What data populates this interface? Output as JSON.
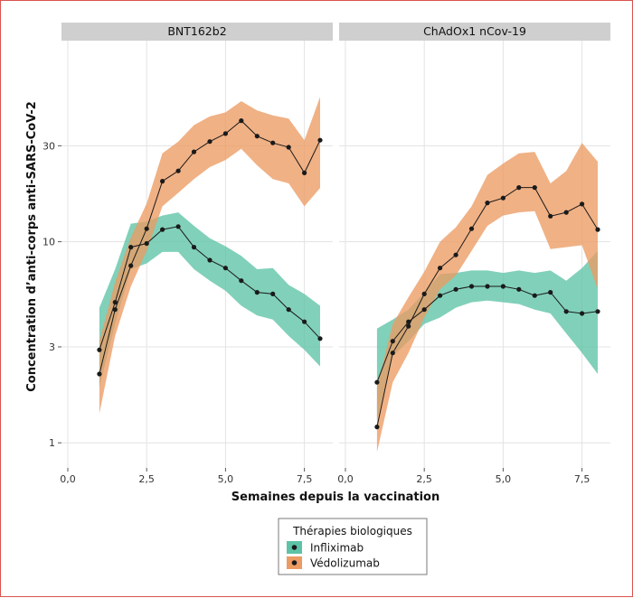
{
  "chart_data": {
    "type": "line",
    "y_scale": "log",
    "ylim": [
      0.75,
      100
    ],
    "xlim": [
      -0.2,
      8.4
    ],
    "x_ticks": [
      0,
      2.5,
      5,
      7.5
    ],
    "x_tick_labels": [
      "0,0",
      "2,5",
      "5,0",
      "7,5"
    ],
    "y_ticks": [
      1,
      3,
      10,
      30
    ],
    "y_tick_labels": [
      "1",
      "3",
      "10",
      "30"
    ],
    "xlabel": "Semaines depuis la vaccination",
    "ylabel": "Concentration d’anti-corps anti-SARS-CoV-2",
    "grid": true,
    "legend": {
      "title": "Thérapies biologiques",
      "position": "bottom",
      "entries": [
        {
          "name": "Infliximab",
          "color": "#5ec3a6"
        },
        {
          "name": "Védolizumab",
          "color": "#ec9b63"
        }
      ]
    },
    "panels": [
      {
        "title": "BNT162b2",
        "series": [
          {
            "name": "Infliximab",
            "x": [
              1,
              1.5,
              2,
              2.5,
              3,
              3.5,
              4,
              4.5,
              5,
              5.5,
              6,
              6.5,
              7,
              7.5,
              8
            ],
            "y": [
              2.9,
              5.0,
              9.4,
              9.8,
              11.5,
              11.9,
              9.4,
              8.1,
              7.4,
              6.4,
              5.6,
              5.5,
              4.6,
              4.0,
              3.3
            ],
            "lower": [
              1.9,
              3.9,
              7.3,
              7.8,
              8.9,
              8.9,
              7.3,
              6.4,
              5.7,
              4.8,
              4.3,
              4.1,
              3.4,
              2.9,
              2.4
            ],
            "upper": [
              4.7,
              7.3,
              12.3,
              12.6,
              13.5,
              14.0,
              12.0,
              10.4,
              9.5,
              8.5,
              7.3,
              7.4,
              6.1,
              5.5,
              4.8
            ]
          },
          {
            "name": "Védolizumab",
            "x": [
              1,
              1.5,
              2,
              2.5,
              3,
              3.5,
              4,
              4.5,
              5,
              5.5,
              6,
              6.5,
              7,
              7.5,
              8
            ],
            "y": [
              2.2,
              4.6,
              7.6,
              11.6,
              20.0,
              22.5,
              28.0,
              31.5,
              34.5,
              40.0,
              33.5,
              31.0,
              29.5,
              22.0,
              32.0
            ],
            "lower": [
              1.4,
              3.4,
              6.0,
              9.0,
              15.0,
              17.5,
              20.5,
              23.5,
              25.5,
              29.0,
              24.0,
              20.5,
              19.5,
              15.0,
              18.5
            ],
            "upper": [
              3.2,
              6.3,
              10.5,
              15.5,
              27.5,
              31.5,
              38.0,
              42.0,
              44.0,
              50.0,
              45.0,
              42.5,
              41.0,
              32.0,
              52.5
            ]
          }
        ]
      },
      {
        "title": "ChAdOx1 nCov-19",
        "series": [
          {
            "name": "Infliximab",
            "x": [
              1,
              1.5,
              2,
              2.5,
              3,
              3.5,
              4,
              4.5,
              5,
              5.5,
              6,
              6.5,
              7,
              7.5,
              8
            ],
            "y": [
              2.0,
              3.2,
              4.0,
              4.6,
              5.4,
              5.8,
              6.0,
              6.0,
              6.0,
              5.8,
              5.4,
              5.6,
              4.5,
              4.4,
              4.5
            ],
            "lower": [
              1.3,
              2.7,
              3.2,
              3.9,
              4.2,
              4.7,
              5.0,
              5.1,
              5.0,
              4.9,
              4.6,
              4.4,
              3.5,
              2.8,
              2.2
            ],
            "upper": [
              3.7,
              4.1,
              4.6,
              5.6,
              6.9,
              7.0,
              7.2,
              7.2,
              7.0,
              7.2,
              7.0,
              7.2,
              6.4,
              7.4,
              9.0
            ]
          },
          {
            "name": "Védolizumab",
            "x": [
              1,
              1.5,
              2,
              2.5,
              3,
              3.5,
              4,
              4.5,
              5,
              5.5,
              6,
              6.5,
              7,
              7.5,
              8
            ],
            "y": [
              1.2,
              2.8,
              3.8,
              5.5,
              7.4,
              8.6,
              11.6,
              15.6,
              16.5,
              18.6,
              18.6,
              13.4,
              14.0,
              15.4,
              11.5
            ],
            "lower": [
              0.9,
              2.0,
              2.8,
              4.2,
              5.8,
              6.8,
              9.0,
              12.0,
              13.5,
              14.0,
              14.2,
              9.2,
              9.4,
              9.6,
              5.8
            ],
            "upper": [
              1.9,
              3.9,
              5.3,
              7.1,
              10.0,
              11.8,
              15.0,
              21.5,
              24.5,
              27.5,
              28.0,
              19.5,
              22.5,
              31.0,
              25.0
            ]
          }
        ]
      }
    ]
  }
}
